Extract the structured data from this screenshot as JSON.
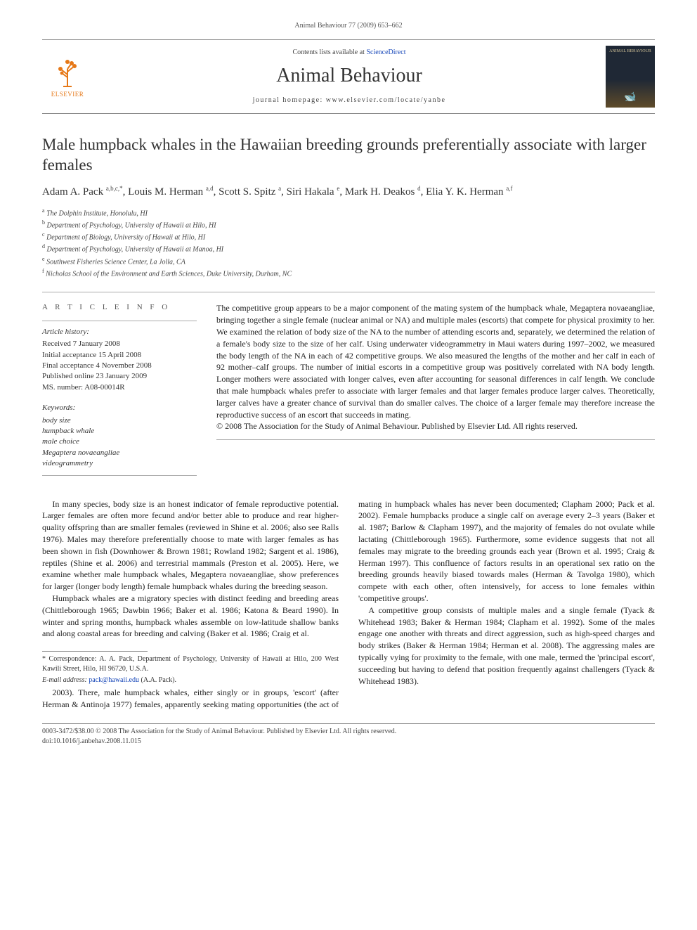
{
  "running_header": "Animal Behaviour 77 (2009) 653–662",
  "masthead": {
    "contents_prefix": "Contents lists available at ",
    "contents_link": "ScienceDirect",
    "journal": "Animal Behaviour",
    "homepage_prefix": "journal homepage: ",
    "homepage": "www.elsevier.com/locate/yanbe",
    "publisher": "ELSEVIER",
    "cover_small": "ANIMAL BEHAVIOUR"
  },
  "title": "Male humpback whales in the Hawaiian breeding grounds preferentially associate with larger females",
  "authors_html": "Adam A. Pack <sup>a,b,c,*</sup>, Louis M. Herman <sup>a,d</sup>, Scott S. Spitz <sup>a</sup>, Siri Hakala <sup>e</sup>, Mark H. Deakos <sup>d</sup>, Elia Y. K. Herman <sup>a,f</sup>",
  "affiliations": [
    {
      "sup": "a",
      "text": "The Dolphin Institute, Honolulu, HI"
    },
    {
      "sup": "b",
      "text": "Department of Psychology, University of Hawaii at Hilo, HI"
    },
    {
      "sup": "c",
      "text": "Department of Biology, University of Hawaii at Hilo, HI"
    },
    {
      "sup": "d",
      "text": "Department of Psychology, University of Hawaii at Manoa, HI"
    },
    {
      "sup": "e",
      "text": "Southwest Fisheries Science Center, La Jolla, CA"
    },
    {
      "sup": "f",
      "text": "Nicholas School of the Environment and Earth Sciences, Duke University, Durham, NC"
    }
  ],
  "article_info_head": "A R T I C L E   I N F O",
  "history": {
    "head": "Article history:",
    "lines": [
      "Received 7 January 2008",
      "Initial acceptance 15 April 2008",
      "Final acceptance 4 November 2008",
      "Published online 23 January 2009",
      "MS. number: A08-00014R"
    ]
  },
  "keywords": {
    "head": "Keywords:",
    "items": [
      "body size",
      "humpback whale",
      "male choice",
      "Megaptera novaeangliae",
      "videogrammetry"
    ]
  },
  "abstract": "The competitive group appears to be a major component of the mating system of the humpback whale, Megaptera novaeangliae, bringing together a single female (nuclear animal or NA) and multiple males (escorts) that compete for physical proximity to her. We examined the relation of body size of the NA to the number of attending escorts and, separately, we determined the relation of a female's body size to the size of her calf. Using underwater videogrammetry in Maui waters during 1997–2002, we measured the body length of the NA in each of 42 competitive groups. We also measured the lengths of the mother and her calf in each of 92 mother–calf groups. The number of initial escorts in a competitive group was positively correlated with NA body length. Longer mothers were associated with longer calves, even after accounting for seasonal differences in calf length. We conclude that male humpback whales prefer to associate with larger females and that larger females produce larger calves. Theoretically, larger calves have a greater chance of survival than do smaller calves. The choice of a larger female may therefore increase the reproductive success of an escort that succeeds in mating.",
  "abstract_copyright": "© 2008 The Association for the Study of Animal Behaviour. Published by Elsevier Ltd. All rights reserved.",
  "body": {
    "p1": "In many species, body size is an honest indicator of female reproductive potential. Larger females are often more fecund and/or better able to produce and rear higher-quality offspring than are smaller females (reviewed in Shine et al. 2006; also see Ralls 1976). Males may therefore preferentially choose to mate with larger females as has been shown in fish (Downhower & Brown 1981; Rowland 1982; Sargent et al. 1986), reptiles (Shine et al. 2006) and terrestrial mammals (Preston et al. 2005). Here, we examine whether male humpback whales, Megaptera novaeangliae, show preferences for larger (longer body length) female humpback whales during the breeding season.",
    "p2": "Humpback whales are a migratory species with distinct feeding and breeding areas (Chittleborough 1965; Dawbin 1966; Baker et al. 1986; Katona & Beard 1990). In winter and spring months, humpback whales assemble on low-latitude shallow banks and along coastal areas for breeding and calving (Baker et al. 1986; Craig et al.",
    "p3": "2003). There, male humpback whales, either singly or in groups, 'escort' (after Herman & Antinoja 1977) females, apparently seeking mating opportunities (the act of mating in humpback whales has never been documented; Clapham 2000; Pack et al. 2002). Female humpbacks produce a single calf on average every 2–3 years (Baker et al. 1987; Barlow & Clapham 1997), and the majority of females do not ovulate while lactating (Chittleborough 1965). Furthermore, some evidence suggests that not all females may migrate to the breeding grounds each year (Brown et al. 1995; Craig & Herman 1997). This confluence of factors results in an operational sex ratio on the breeding grounds heavily biased towards males (Herman & Tavolga 1980), which compete with each other, often intensively, for access to lone females within 'competitive groups'.",
    "p4": "A competitive group consists of multiple males and a single female (Tyack & Whitehead 1983; Baker & Herman 1984; Clapham et al. 1992). Some of the males engage one another with threats and direct aggression, such as high-speed charges and body strikes (Baker & Herman 1984; Herman et al. 2008). The aggressing males are typically vying for proximity to the female, with one male, termed the 'principal escort', succeeding but having to defend that position frequently against challengers (Tyack & Whitehead 1983)."
  },
  "footnotes": {
    "corr": "* Correspondence: A. A. Pack, Department of Psychology, University of Hawaii at Hilo, 200 West Kawili Street, Hilo, HI 96720, U.S.A.",
    "email_label": "E-mail address:",
    "email": "pack@hawaii.edu",
    "email_who": "(A.A. Pack)."
  },
  "bottom": {
    "line1": "0003-3472/$38.00 © 2008 The Association for the Study of Animal Behaviour. Published by Elsevier Ltd. All rights reserved.",
    "line2": "doi:10.1016/j.anbehav.2008.11.015"
  },
  "colors": {
    "link": "#1646b8",
    "brand": "#e67817",
    "rule": "#888888",
    "text": "#333333"
  }
}
